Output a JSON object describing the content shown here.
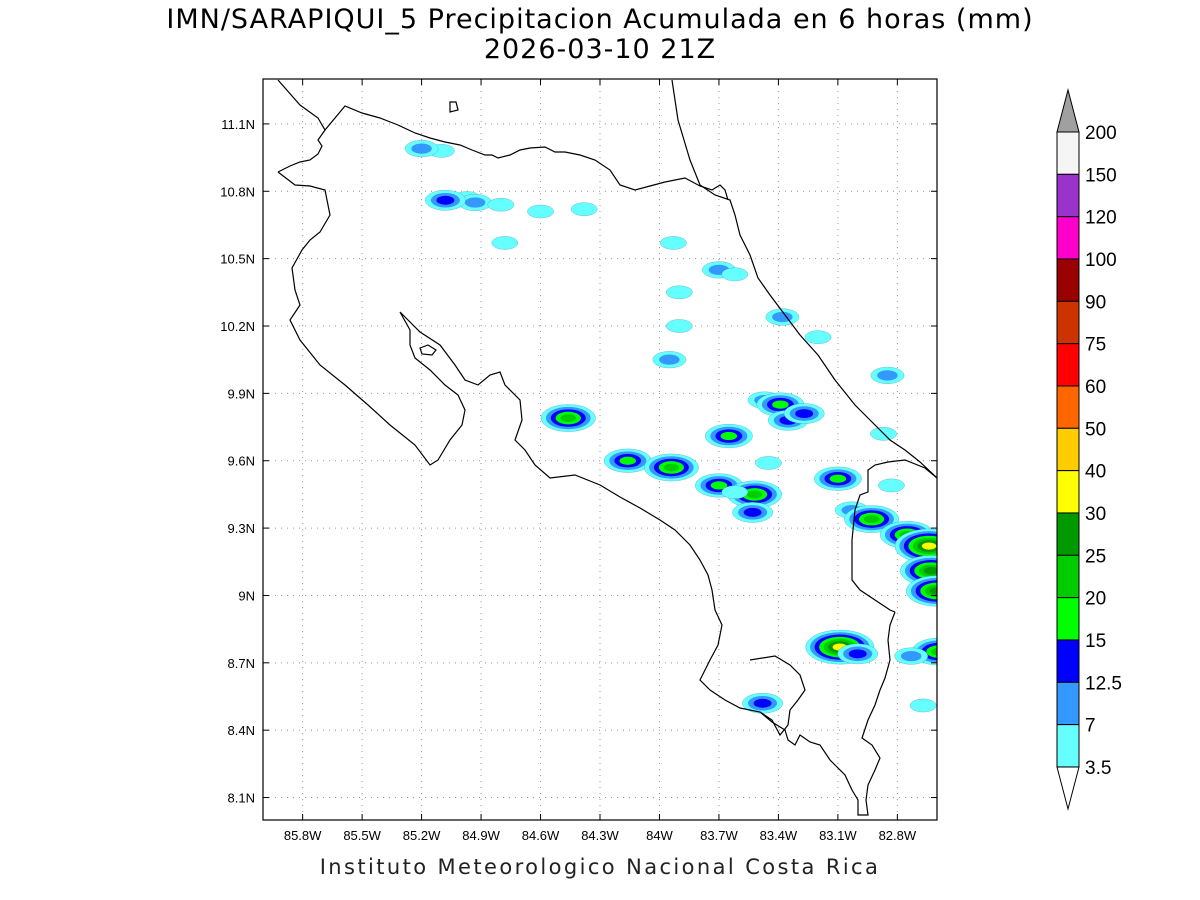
{
  "title": {
    "line1": "IMN/SARAPIQUI_5 Precipitacion Acumulada en 6 horas (mm)",
    "line2": "2026-03-10 21Z"
  },
  "credit": "Instituto Meteorologico Nacional Costa Rica",
  "map": {
    "lon_range": [
      -86.0,
      -82.6
    ],
    "lat_range": [
      8.0,
      11.3
    ],
    "x_ticks": [
      "85.8W",
      "85.5W",
      "85.2W",
      "84.9W",
      "84.6W",
      "84.3W",
      "84W",
      "83.7W",
      "83.4W",
      "83.1W",
      "82.8W"
    ],
    "x_tick_values": [
      -85.8,
      -85.5,
      -85.2,
      -84.9,
      -84.6,
      -84.3,
      -84.0,
      -83.7,
      -83.4,
      -83.1,
      -82.8
    ],
    "y_ticks": [
      "11.1N",
      "10.8N",
      "10.5N",
      "10.2N",
      "9.9N",
      "9.6N",
      "9.3N",
      "9N",
      "8.7N",
      "8.4N",
      "8.1N"
    ],
    "y_tick_values": [
      11.1,
      10.8,
      10.5,
      10.2,
      9.9,
      9.6,
      9.3,
      9.0,
      8.7,
      8.4,
      8.1
    ],
    "grid": "dotted",
    "coastline_color": "#000000",
    "precip_cells": [
      {
        "lon": -85.1,
        "lat": 10.98,
        "level": 1
      },
      {
        "lon": -85.2,
        "lat": 10.99,
        "level": 2
      },
      {
        "lon": -84.97,
        "lat": 10.77,
        "level": 1
      },
      {
        "lon": -84.93,
        "lat": 10.75,
        "level": 2
      },
      {
        "lon": -85.08,
        "lat": 10.76,
        "level": 3
      },
      {
        "lon": -84.6,
        "lat": 10.71,
        "level": 1
      },
      {
        "lon": -84.8,
        "lat": 10.74,
        "level": 1
      },
      {
        "lon": -84.38,
        "lat": 10.72,
        "level": 1
      },
      {
        "lon": -84.78,
        "lat": 10.57,
        "level": 1
      },
      {
        "lon": -83.93,
        "lat": 10.57,
        "level": 1
      },
      {
        "lon": -83.7,
        "lat": 10.45,
        "level": 2
      },
      {
        "lon": -83.62,
        "lat": 10.43,
        "level": 1
      },
      {
        "lon": -83.9,
        "lat": 10.35,
        "level": 1
      },
      {
        "lon": -83.38,
        "lat": 10.24,
        "level": 2
      },
      {
        "lon": -83.2,
        "lat": 10.15,
        "level": 1
      },
      {
        "lon": -83.9,
        "lat": 10.2,
        "level": 1
      },
      {
        "lon": -83.95,
        "lat": 10.05,
        "level": 2
      },
      {
        "lon": -82.85,
        "lat": 9.98,
        "level": 2
      },
      {
        "lon": -83.47,
        "lat": 9.87,
        "level": 2
      },
      {
        "lon": -83.39,
        "lat": 9.85,
        "level": 4
      },
      {
        "lon": -83.35,
        "lat": 9.78,
        "level": 3
      },
      {
        "lon": -83.27,
        "lat": 9.81,
        "level": 3
      },
      {
        "lon": -84.46,
        "lat": 9.79,
        "level": 5
      },
      {
        "lon": -83.65,
        "lat": 9.71,
        "level": 4
      },
      {
        "lon": -84.16,
        "lat": 9.6,
        "level": 4
      },
      {
        "lon": -83.94,
        "lat": 9.57,
        "level": 5
      },
      {
        "lon": -83.7,
        "lat": 9.49,
        "level": 4
      },
      {
        "lon": -83.1,
        "lat": 9.52,
        "level": 4
      },
      {
        "lon": -83.52,
        "lat": 9.45,
        "level": 5
      },
      {
        "lon": -83.53,
        "lat": 9.37,
        "level": 3
      },
      {
        "lon": -83.03,
        "lat": 9.38,
        "level": 2
      },
      {
        "lon": -82.93,
        "lat": 9.34,
        "level": 5
      },
      {
        "lon": -82.75,
        "lat": 9.27,
        "level": 5
      },
      {
        "lon": -82.64,
        "lat": 9.22,
        "level": 7
      },
      {
        "lon": -82.63,
        "lat": 9.11,
        "level": 6
      },
      {
        "lon": -82.6,
        "lat": 9.02,
        "level": 6
      },
      {
        "lon": -83.09,
        "lat": 8.77,
        "level": 7
      },
      {
        "lon": -83.0,
        "lat": 8.74,
        "level": 3
      },
      {
        "lon": -82.59,
        "lat": 8.75,
        "level": 5
      },
      {
        "lon": -82.73,
        "lat": 8.73,
        "level": 2
      },
      {
        "lon": -83.48,
        "lat": 8.52,
        "level": 3
      },
      {
        "lon": -82.67,
        "lat": 8.51,
        "level": 1
      },
      {
        "lon": -82.83,
        "lat": 9.49,
        "level": 1
      },
      {
        "lon": -82.87,
        "lat": 9.72,
        "level": 1
      },
      {
        "lon": -83.45,
        "lat": 9.59,
        "level": 1
      },
      {
        "lon": -83.62,
        "lat": 9.46,
        "level": 1
      }
    ]
  },
  "legend": {
    "labels": [
      "3.5",
      "7",
      "12.5",
      "15",
      "20",
      "25",
      "30",
      "40",
      "50",
      "60",
      "75",
      "90",
      "100",
      "120",
      "150",
      "200"
    ],
    "colors": [
      "#66ffff",
      "#3399ff",
      "#0000ff",
      "#00ff00",
      "#00cc00",
      "#009900",
      "#ffff00",
      "#ffcc00",
      "#ff6600",
      "#ff0000",
      "#cc3300",
      "#990000",
      "#ff00cc",
      "#9933cc",
      "#f5f5f5"
    ],
    "top_triangle_color": "#a0a0a0",
    "bottom_triangle_color": "#ffffff"
  }
}
